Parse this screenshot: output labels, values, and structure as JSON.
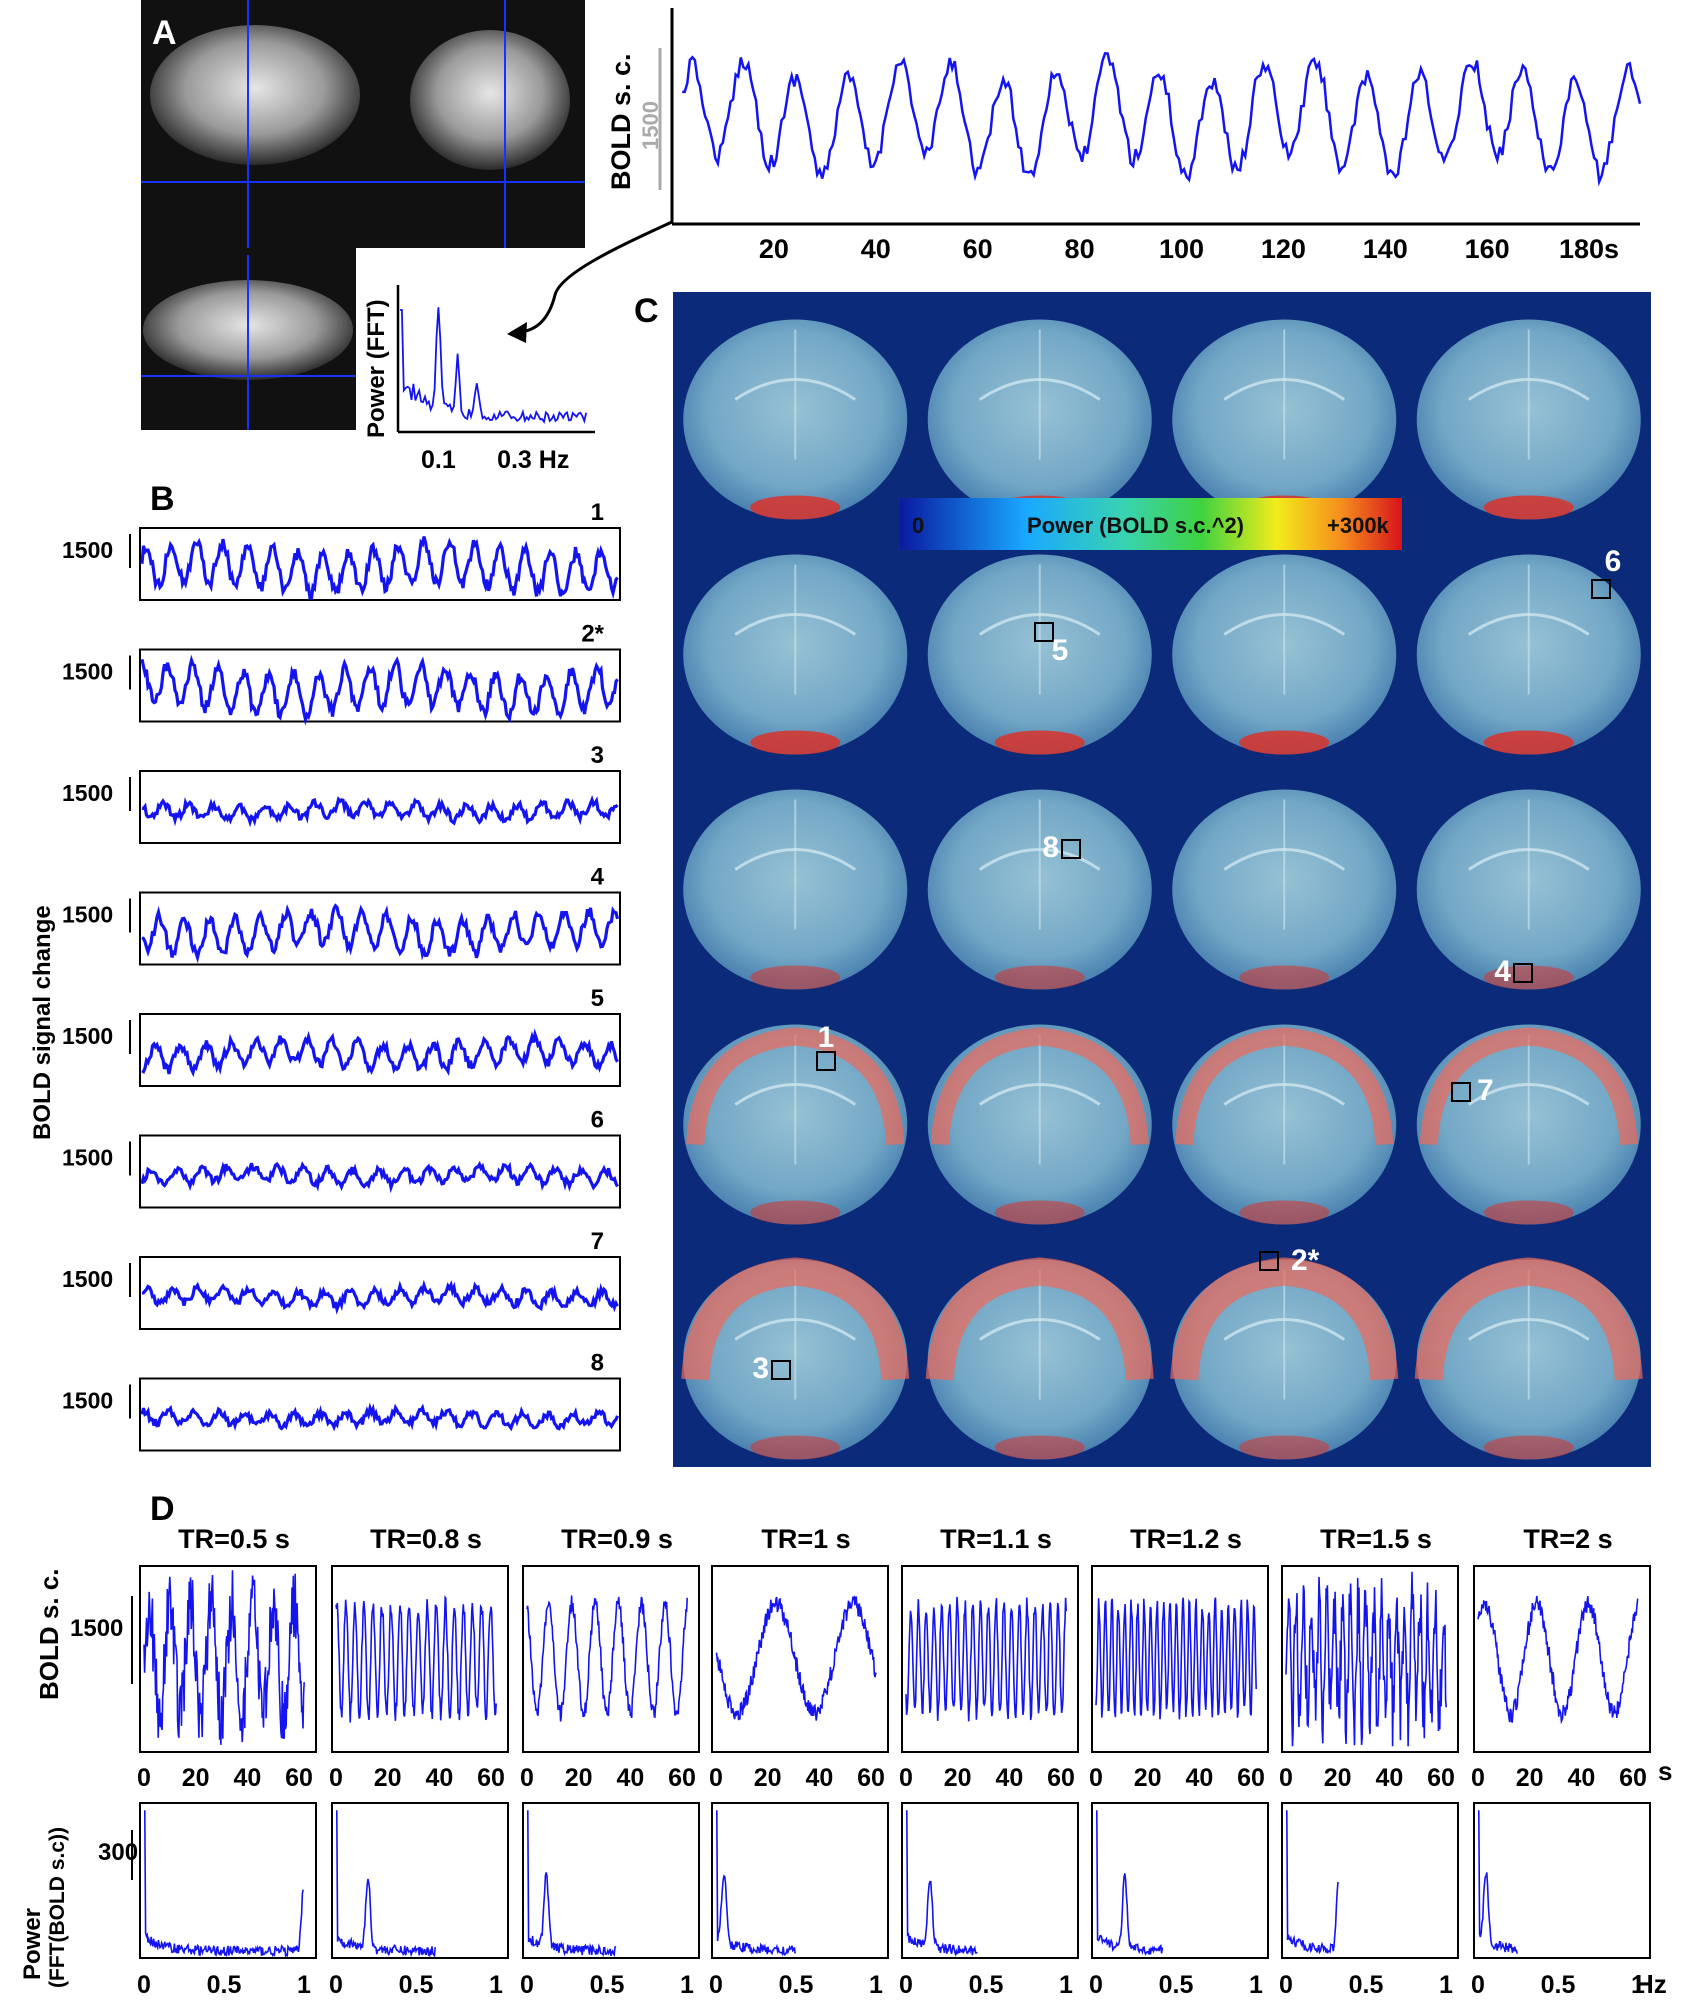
{
  "panels": {
    "A": {
      "letter": "A",
      "trace": {
        "ylabel": "BOLD s. c.",
        "scale_label": "1500",
        "x_ticks": [
          "20",
          "40",
          "60",
          "80",
          "100",
          "120",
          "140",
          "160",
          "180s"
        ],
        "tick_values": [
          20,
          40,
          60,
          80,
          100,
          120,
          140,
          160,
          180
        ],
        "xlim": [
          0,
          190
        ]
      },
      "fft_inset": {
        "ylabel": "Power (FFT)",
        "x_ticks": [
          "0.1",
          "0.3 Hz"
        ],
        "tick_values": [
          0.1,
          0.3
        ],
        "xlim": [
          0,
          0.5
        ]
      }
    },
    "B": {
      "letter": "B",
      "ylabel": "BOLD signal change",
      "scale_label": "1500",
      "trace_labels": [
        "1",
        "2*",
        "3",
        "4",
        "5",
        "6",
        "7",
        "8"
      ],
      "amplitudes": [
        1.0,
        1.0,
        0.35,
        0.85,
        0.6,
        0.35,
        0.35,
        0.3
      ]
    },
    "C": {
      "letter": "C",
      "colorbar": {
        "min_label": "0",
        "title": "Power (BOLD s.c.^2)",
        "max_label": "+300k"
      },
      "roi_labels": [
        "1",
        "2*",
        "3",
        "4",
        "5",
        "6",
        "7",
        "8"
      ]
    },
    "D": {
      "letter": "D",
      "tr_titles": [
        "TR=0.5 s",
        "TR=0.8 s",
        "TR=0.9 s",
        "TR=1 s",
        "TR=1.1 s",
        "TR=1.2 s",
        "TR=1.5 s",
        "TR=2 s"
      ],
      "trace_ylabel": "BOLD s. c.",
      "trace_scale_label": "1500",
      "trace_x_ticks": [
        "0",
        "20",
        "40",
        "60"
      ],
      "trace_unit": "s",
      "power_ylabel_1": "Power",
      "power_ylabel_2": "(FFT(BOLD s.c))",
      "power_scale_label": "300",
      "power_x_ticks": [
        "0",
        "0.5",
        "1"
      ],
      "power_unit": "Hz"
    }
  },
  "chart_data": [
    {
      "type": "line",
      "panel": "A-trace",
      "xlabel": "",
      "ylabel": "BOLD s. c.",
      "x_unit": "s",
      "xlim": [
        0,
        190
      ],
      "dominant_period_s": 10
    },
    {
      "type": "line",
      "panel": "A-fft",
      "xlabel": "Hz",
      "ylabel": "Power (FFT)",
      "xlim": [
        0,
        0.5
      ],
      "peak_hz": 0.1
    },
    {
      "type": "line",
      "panel": "D-traces",
      "series": [
        {
          "name": "TR=0.5 s",
          "period_s": 8
        },
        {
          "name": "TR=0.8 s",
          "period_s": 3.5
        },
        {
          "name": "TR=0.9 s",
          "period_s": 9
        },
        {
          "name": "TR=1 s",
          "period_s": 30
        },
        {
          "name": "TR=1.1 s",
          "period_s": 3
        },
        {
          "name": "TR=1.2 s",
          "period_s": 2.5
        },
        {
          "name": "TR=1.5 s",
          "period_s": 3
        },
        {
          "name": "TR=2 s",
          "period_s": 20
        }
      ]
    },
    {
      "type": "line",
      "panel": "D-power",
      "series": [
        {
          "name": "TR=0.5 s",
          "nyquist_hz": 1.0,
          "peak_hz": 1.0
        },
        {
          "name": "TR=0.8 s",
          "nyquist_hz": 0.625,
          "peak_hz": 0.2
        },
        {
          "name": "TR=0.9 s",
          "nyquist_hz": 0.56,
          "peak_hz": 0.12
        },
        {
          "name": "TR=1 s",
          "nyquist_hz": 0.5,
          "peak_hz": 0.05
        },
        {
          "name": "TR=1.1 s",
          "nyquist_hz": 0.45,
          "peak_hz": 0.15
        },
        {
          "name": "TR=1.2 s",
          "nyquist_hz": 0.42,
          "peak_hz": 0.18
        },
        {
          "name": "TR=1.5 s",
          "nyquist_hz": 0.33,
          "peak_hz": 0.33
        },
        {
          "name": "TR=2 s",
          "nyquist_hz": 0.25,
          "peak_hz": 0.05
        }
      ]
    }
  ]
}
